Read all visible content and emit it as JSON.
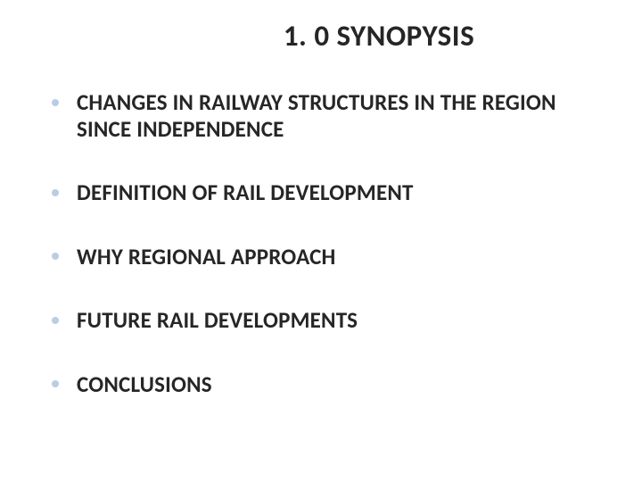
{
  "slide": {
    "title": "1. 0 SYNOPYSIS",
    "title_fontsize": 33,
    "title_color": "#262626",
    "background_color": "#ffffff",
    "bullet_color": "#b9cde5",
    "text_color": "#262626",
    "bullets": [
      {
        "text": "CHANGES IN RAILWAY STRUCTURES IN THE REGION SINCE INDEPENDENCE"
      },
      {
        "text": "DEFINITION OF RAIL DEVELOPMENT"
      },
      {
        "text": "WHY REGIONAL APPROACH"
      },
      {
        "text": "FUTURE RAIL DEVELOPMENTS"
      },
      {
        "text": "CONCLUSIONS"
      }
    ],
    "bullet_fontsize": 25,
    "bullet_fontweight": 700
  }
}
